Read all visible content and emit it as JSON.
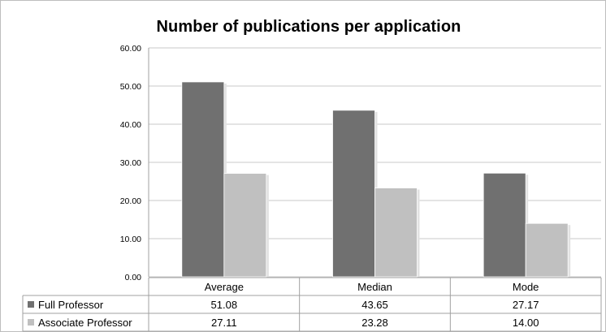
{
  "chart_data": {
    "type": "bar",
    "title": "Number of publications per application",
    "categories": [
      "Average",
      "Median",
      "Mode"
    ],
    "series": [
      {
        "name": "Full Professor",
        "values": [
          51.08,
          43.65,
          27.17
        ],
        "labels": [
          "51.08",
          "43.65",
          "27.17"
        ],
        "color": "#707070"
      },
      {
        "name": "Associate Professor",
        "values": [
          27.11,
          23.28,
          14.0
        ],
        "labels": [
          "27.11",
          "23.28",
          "14.00"
        ],
        "color": "#c0c0c0"
      }
    ],
    "ylim": [
      0,
      60
    ],
    "yticks": [
      "0.00",
      "10.00",
      "20.00",
      "30.00",
      "40.00",
      "50.00",
      "60.00"
    ],
    "grid": true,
    "legend": "data-table"
  }
}
